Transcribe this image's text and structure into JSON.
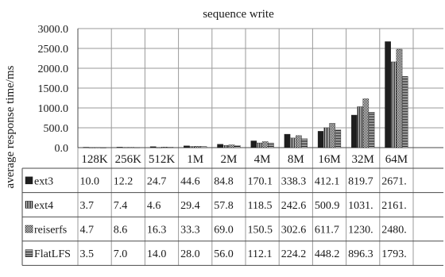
{
  "chart_data": {
    "type": "bar",
    "title": "sequence write",
    "xlabel": "",
    "ylabel": "average response time/ms",
    "ylim": [
      0,
      3000
    ],
    "y_ticks": [
      "0.0",
      "500.0",
      "1000.0",
      "1500.0",
      "2000.0",
      "2500.0",
      "3000.0"
    ],
    "grid": true,
    "legend": "data-table",
    "categories": [
      "128K",
      "256K",
      "512K",
      "1M",
      "2M",
      "4M",
      "8M",
      "16M",
      "32M",
      "64M"
    ],
    "series": [
      {
        "name": "ext3",
        "pattern": "solid",
        "values": [
          10.0,
          12.2,
          24.7,
          44.6,
          84.8,
          170.1,
          338.3,
          412.1,
          819.7,
          2671.0
        ],
        "labels": [
          "10.0",
          "12.2",
          "24.7",
          "44.6",
          "84.8",
          "170.1",
          "338.3",
          "412.1",
          "819.7",
          "2671."
        ]
      },
      {
        "name": "ext4",
        "pattern": "vertical-stripes",
        "values": [
          3.7,
          7.4,
          4.6,
          29.4,
          57.8,
          118.5,
          242.6,
          500.9,
          1031.0,
          2161.0
        ],
        "labels": [
          "3.7",
          "7.4",
          "4.6",
          "29.4",
          "57.8",
          "118.5",
          "242.6",
          "500.9",
          "1031.",
          "2161."
        ]
      },
      {
        "name": "reiserfs",
        "pattern": "checker",
        "values": [
          4.7,
          8.6,
          16.3,
          33.3,
          69.0,
          150.5,
          302.6,
          611.7,
          1230.0,
          2480.0
        ],
        "labels": [
          "4.7",
          "8.6",
          "16.3",
          "33.3",
          "69.0",
          "150.5",
          "302.6",
          "611.7",
          "1230.",
          "2480."
        ]
      },
      {
        "name": "FlatLFS",
        "pattern": "horizontal-stripes",
        "values": [
          3.5,
          7.0,
          14.0,
          28.0,
          56.0,
          112.1,
          224.2,
          448.2,
          896.3,
          1793.0
        ],
        "labels": [
          "3.5",
          "7.0",
          "14.0",
          "28.0",
          "56.0",
          "112.1",
          "224.2",
          "448.2",
          "896.3",
          "1793."
        ]
      }
    ],
    "colors": {
      "bar": "#1e1e1e",
      "grid": "#9a9a9a",
      "border": "#4a4a4a",
      "text": "#1a1a1a"
    }
  }
}
